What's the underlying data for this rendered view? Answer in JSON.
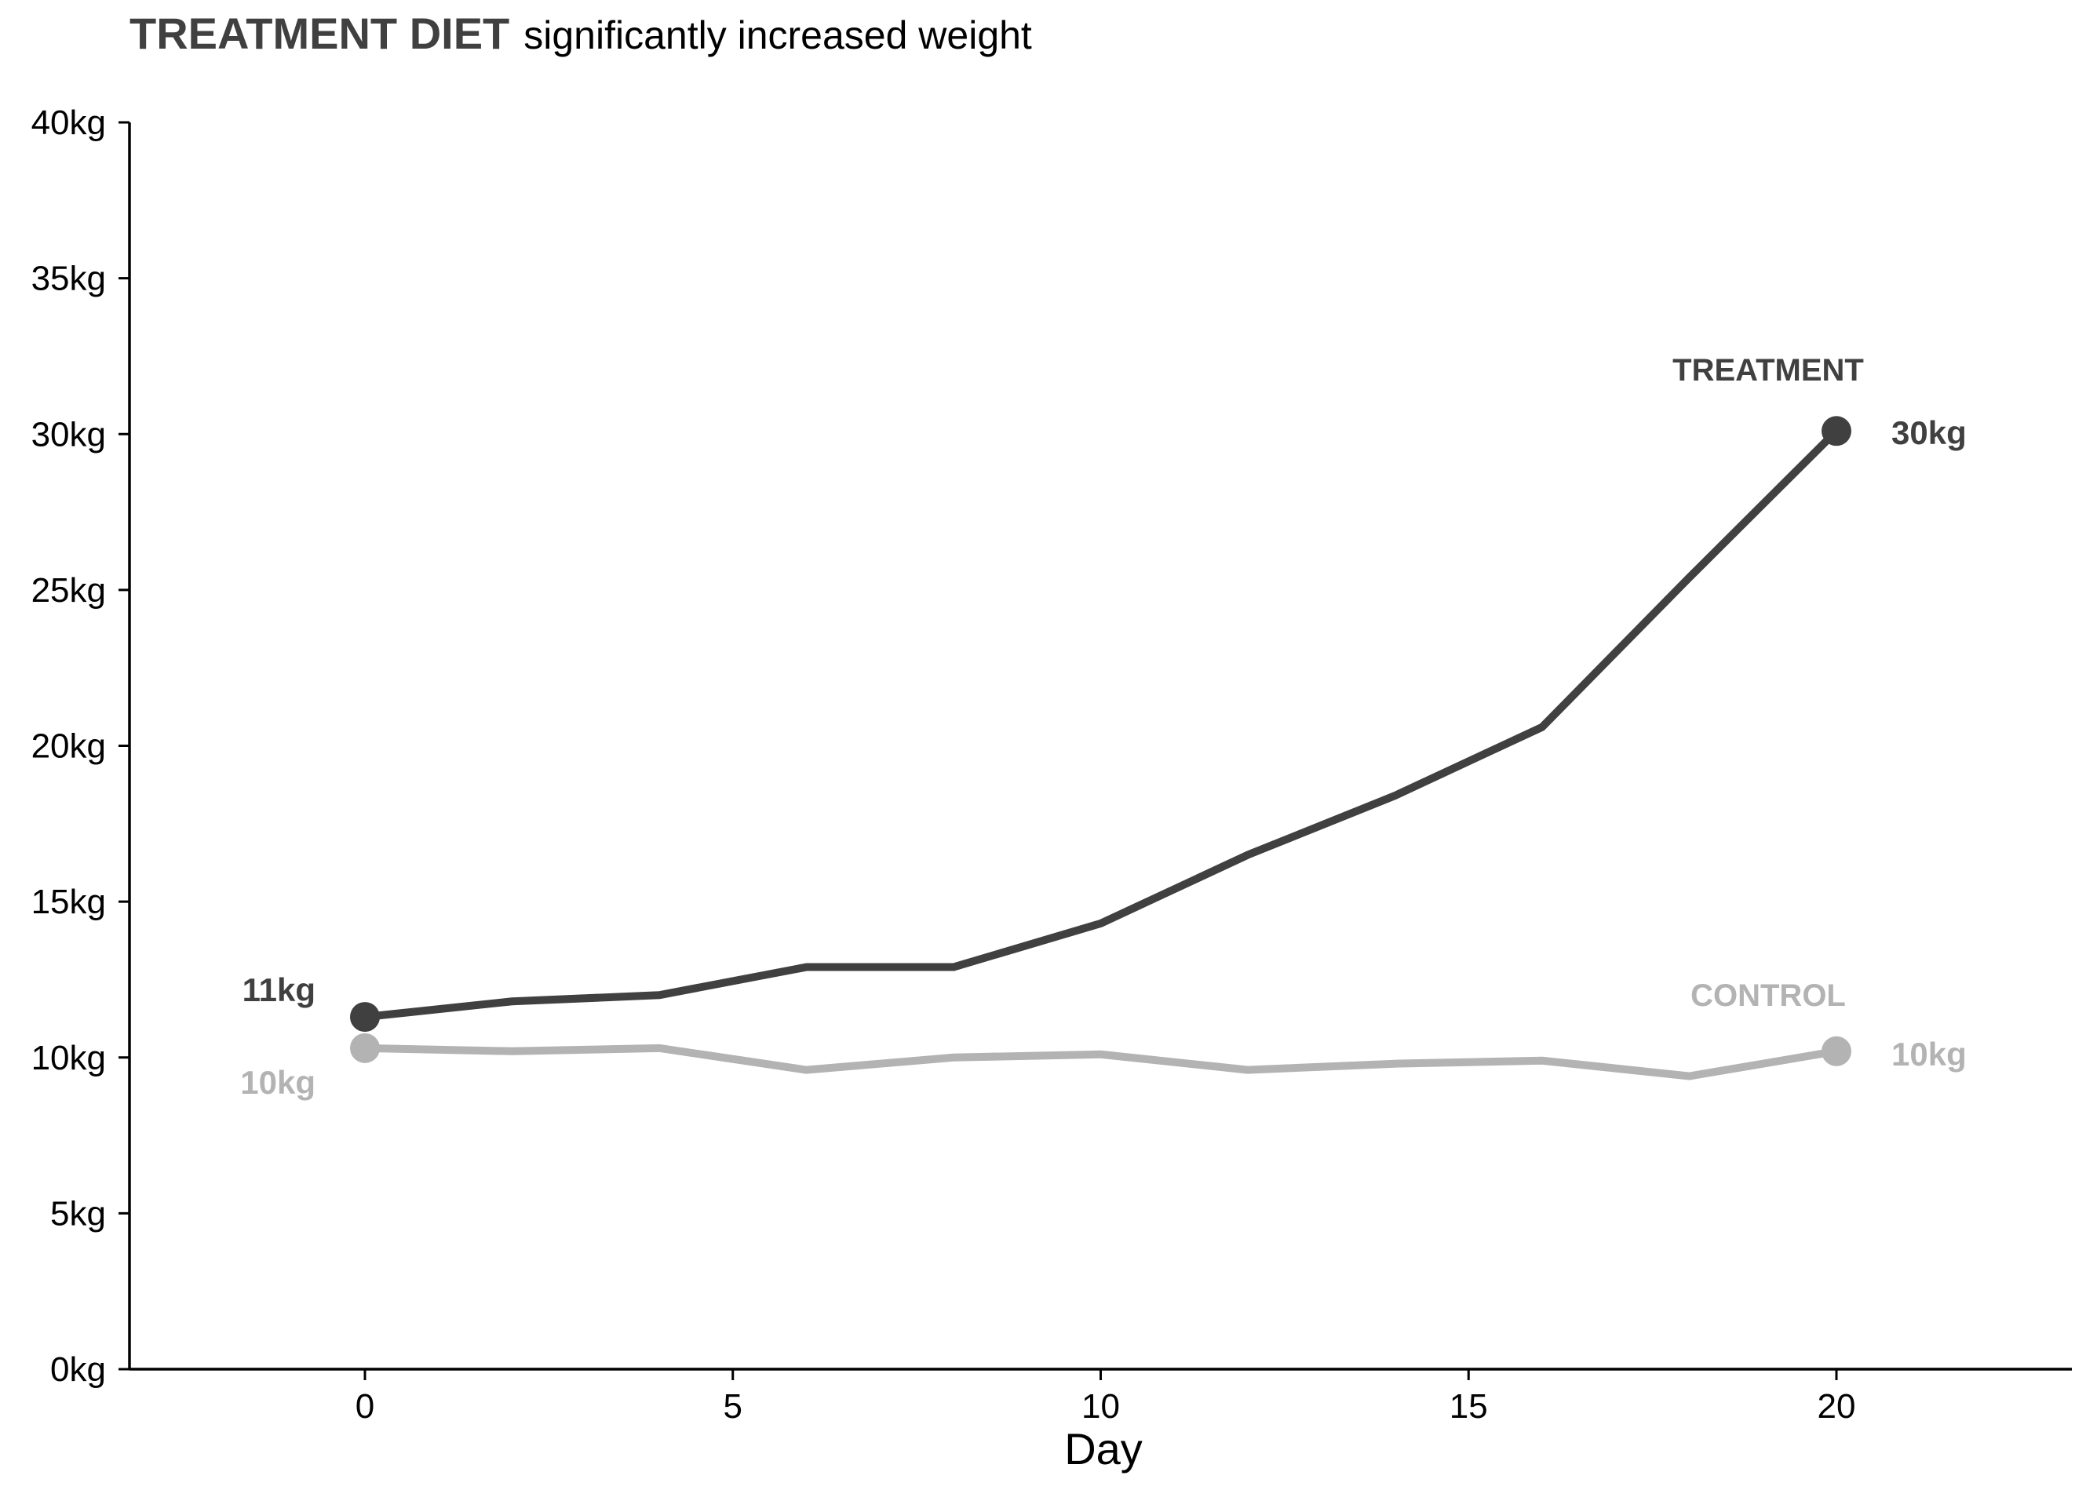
{
  "chart_data": {
    "type": "line",
    "title": {
      "bold": "TREATMENT DIET",
      "rest": "significantly increased weight"
    },
    "xlabel": "Day",
    "ylabel": "",
    "xlim": [
      -3.2,
      23.2
    ],
    "ylim": [
      0,
      40
    ],
    "x_ticks": [
      0,
      5,
      10,
      15,
      20
    ],
    "x_tick_labels": [
      "0",
      "5",
      "10",
      "15",
      "20"
    ],
    "y_ticks": [
      0,
      5,
      10,
      15,
      20,
      25,
      30,
      35,
      40
    ],
    "y_tick_labels": [
      "0kg",
      "5kg",
      "10kg",
      "15kg",
      "20kg",
      "25kg",
      "30kg",
      "35kg",
      "40kg"
    ],
    "grid": false,
    "legend": "none (direct labels at line ends)",
    "series": [
      {
        "name": "TREATMENT",
        "color": "#404040",
        "x": [
          0,
          2,
          4,
          6,
          8,
          10,
          12,
          14,
          16,
          18,
          20
        ],
        "y": [
          11.3,
          11.8,
          12.0,
          12.9,
          12.9,
          14.3,
          16.5,
          18.4,
          20.6,
          25.4,
          30.1
        ],
        "start_label": "11kg",
        "end_label": "30kg"
      },
      {
        "name": "CONTROL",
        "color": "#b3b3b3",
        "x": [
          0,
          2,
          4,
          6,
          8,
          10,
          12,
          14,
          16,
          18,
          20
        ],
        "y": [
          10.3,
          10.2,
          10.3,
          9.6,
          10.0,
          10.1,
          9.6,
          9.8,
          9.9,
          9.4,
          10.2
        ],
        "start_label": "10kg",
        "end_label": "10kg"
      }
    ]
  }
}
